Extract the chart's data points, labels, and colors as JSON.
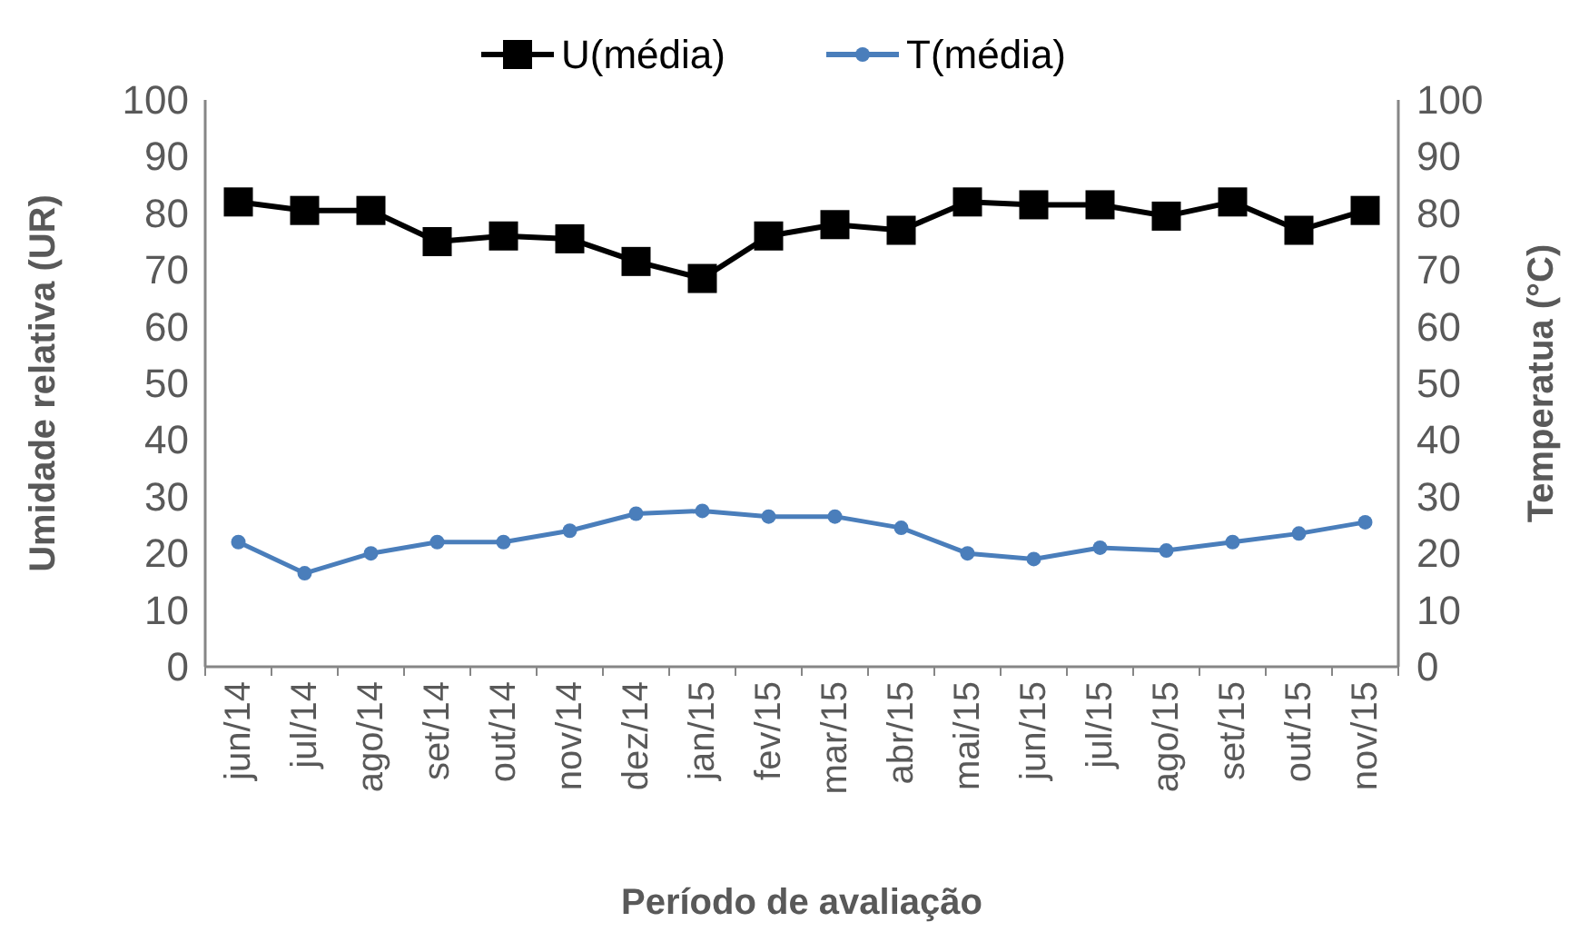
{
  "chart_data": {
    "type": "line",
    "xlabel": "Período de avaliação",
    "ylabel": "Umidade  relativa (UR)",
    "y2label": "Temperatua (°C)",
    "categories": [
      "jun/14",
      "jul/14",
      "ago/14",
      "set/14",
      "out/14",
      "nov/14",
      "dez/14",
      "jan/15",
      "fev/15",
      "mar/15",
      "abr/15",
      "mai/15",
      "jun/15",
      "jul/15",
      "ago/15",
      "set/15",
      "out/15",
      "nov/15"
    ],
    "series": [
      {
        "name": "U(média)",
        "color": "#000000",
        "marker": "square",
        "values": [
          82,
          80.5,
          80.5,
          75,
          76,
          75.5,
          71.5,
          68.5,
          76,
          78,
          77,
          82,
          81.5,
          81.5,
          79.5,
          82,
          77,
          80.5
        ]
      },
      {
        "name": "T(média)",
        "color": "#4a7ebb",
        "marker": "circle",
        "values": [
          22,
          16.5,
          20,
          22,
          22,
          24,
          27,
          27.5,
          26.5,
          26.5,
          24.5,
          20,
          19,
          21,
          20.5,
          22,
          23.5,
          25.5
        ]
      }
    ],
    "ylim": [
      0,
      100
    ],
    "yticks": [
      0,
      10,
      20,
      30,
      40,
      50,
      60,
      70,
      80,
      90,
      100
    ],
    "y2lim": [
      0,
      100
    ],
    "y2ticks": [
      0,
      10,
      20,
      30,
      40,
      50,
      60,
      70,
      80,
      90,
      100
    ],
    "grid": false,
    "legend": "top"
  }
}
